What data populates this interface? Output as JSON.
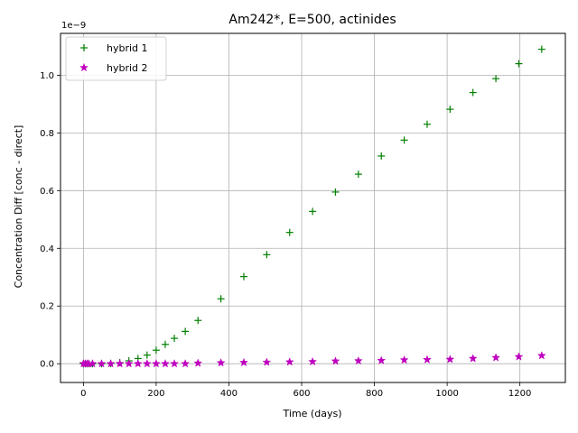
{
  "chart_data": {
    "type": "scatter",
    "title": "Am242*, E=500, actinides",
    "xlabel": "Time (days)",
    "ylabel": "Concentration Diff [conc - direct]",
    "y_scale_label": "1e−9",
    "xlim": [
      -63,
      1325
    ],
    "ylim": [
      -0.065,
      1.145
    ],
    "xticks": [
      0,
      200,
      400,
      600,
      800,
      1000,
      1200
    ],
    "xtick_labels": [
      "0",
      "200",
      "400",
      "600",
      "800",
      "1000",
      "1200"
    ],
    "yticks": [
      0.0,
      0.2,
      0.4,
      0.6,
      0.8,
      1.0
    ],
    "ytick_labels": [
      "0.0",
      "0.2",
      "0.4",
      "0.6",
      "0.8",
      "1.0"
    ],
    "grid": true,
    "legend_position": "top-left",
    "series": [
      {
        "name": "hybrid 1",
        "marker": "+",
        "color": "#008000",
        "x": [
          0,
          5,
          10,
          15,
          25,
          50,
          75,
          100,
          125,
          150,
          175,
          200,
          225,
          250,
          280,
          315,
          378,
          441,
          504,
          567,
          630,
          693,
          756,
          819,
          882,
          945,
          1008,
          1071,
          1134,
          1197,
          1260
        ],
        "y": [
          0.0,
          0.0,
          0.0,
          0.0,
          0.0,
          0.0,
          0.001,
          0.004,
          0.01,
          0.018,
          0.03,
          0.047,
          0.067,
          0.088,
          0.112,
          0.15,
          0.225,
          0.302,
          0.378,
          0.455,
          0.528,
          0.595,
          0.657,
          0.72,
          0.775,
          0.83,
          0.882,
          0.94,
          0.988,
          1.04,
          1.09
        ]
      },
      {
        "name": "hybrid 2",
        "marker": "*",
        "color": "#bf00bf",
        "x": [
          0,
          5,
          10,
          15,
          25,
          50,
          75,
          100,
          125,
          150,
          175,
          200,
          225,
          250,
          280,
          315,
          378,
          441,
          504,
          567,
          630,
          693,
          756,
          819,
          882,
          945,
          1008,
          1071,
          1134,
          1197,
          1260
        ],
        "y": [
          0.0,
          0.0,
          0.0,
          0.0,
          0.0,
          0.0,
          0.0,
          0.0,
          0.0,
          0.0,
          0.0,
          0.0,
          0.0,
          0.0,
          0.0,
          0.002,
          0.003,
          0.004,
          0.005,
          0.006,
          0.007,
          0.009,
          0.01,
          0.011,
          0.013,
          0.014,
          0.015,
          0.018,
          0.021,
          0.024,
          0.028
        ]
      }
    ]
  }
}
